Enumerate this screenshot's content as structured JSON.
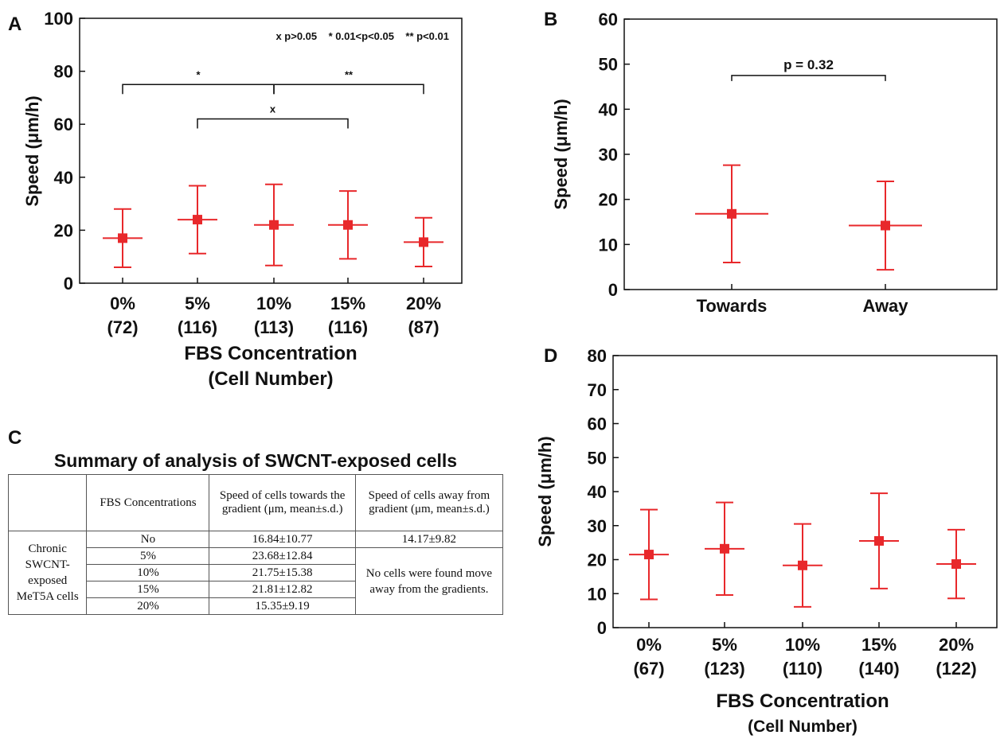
{
  "colors": {
    "marker": "#e8282b",
    "axis": "#111111",
    "sig": "#111111"
  },
  "panels": {
    "A": {
      "letter": "A",
      "legend": "x p>0.05    * 0.01<p<0.05    ** p<0.01",
      "xtitle_line1": "FBS Concentration",
      "xtitle_line2": "(Cell Number)"
    },
    "B": {
      "letter": "B",
      "pvalue": "p = 0.32"
    },
    "C": {
      "letter": "C",
      "title": "Summary of analysis of SWCNT-exposed cells"
    },
    "D": {
      "letter": "D",
      "xtitle_line1": "FBS Concentration",
      "xtitle_line2": "(Cell Number)"
    }
  },
  "chart_data": [
    {
      "panel": "A",
      "type": "scatter",
      "ylabel": "Speed (μm/h)",
      "ylim": [
        0,
        100
      ],
      "yticks": [
        0,
        20,
        40,
        60,
        80,
        100
      ],
      "categories": [
        "0%",
        "5%",
        "10%",
        "15%",
        "20%"
      ],
      "category_counts": [
        "(72)",
        "(116)",
        "(113)",
        "(116)",
        "(87)"
      ],
      "values": [
        17,
        24,
        22,
        22,
        15.5
      ],
      "errors": [
        11,
        12.8,
        15.3,
        12.8,
        9.2
      ],
      "significance": [
        {
          "from": 0,
          "to": 2,
          "label": "*",
          "y": 75
        },
        {
          "from": 2,
          "to": 4,
          "label": "**",
          "y": 75
        },
        {
          "from": 1,
          "to": 3,
          "label": "x",
          "y": 62
        }
      ]
    },
    {
      "panel": "B",
      "type": "scatter",
      "ylabel": "Speed (μm/h)",
      "ylim": [
        0,
        60
      ],
      "yticks": [
        0,
        10,
        20,
        30,
        40,
        50,
        60
      ],
      "categories": [
        "Towards",
        "Away"
      ],
      "values": [
        16.8,
        14.2
      ],
      "errors": [
        10.8,
        9.8
      ],
      "significance": [
        {
          "from": 0,
          "to": 1,
          "label": "p = 0.32",
          "y": 47.5
        }
      ]
    },
    {
      "panel": "D",
      "type": "scatter",
      "ylabel": "Speed (μm/h)",
      "ylim": [
        0,
        80
      ],
      "yticks": [
        0,
        10,
        20,
        30,
        40,
        50,
        60,
        70,
        80
      ],
      "categories": [
        "0%",
        "5%",
        "10%",
        "15%",
        "20%"
      ],
      "category_counts": [
        "(67)",
        "(123)",
        "(110)",
        "(140)",
        "(122)"
      ],
      "values": [
        21.5,
        23.2,
        18.3,
        25.5,
        18.7
      ],
      "errors": [
        13.2,
        13.6,
        12.2,
        14,
        10.1
      ]
    },
    {
      "panel": "C",
      "type": "table",
      "headers": [
        "",
        "FBS Concentrations",
        "Speed of cells towards the gradient (μm, mean±s.d.)",
        "Speed of cells away from gradient (μm, mean±s.d.)"
      ],
      "row_group_label": "Chronic SWCNT-exposed MeT5A cells",
      "rows": [
        {
          "fbs": "No",
          "towards": "16.84±10.77",
          "away": "14.17±9.82"
        },
        {
          "fbs": "5%",
          "towards": "23.68±12.84"
        },
        {
          "fbs": "10%",
          "towards": "21.75±15.38"
        },
        {
          "fbs": "15%",
          "towards": "21.81±12.82"
        },
        {
          "fbs": "20%",
          "towards": "15.35±9.19"
        }
      ],
      "away_merged_note": "No cells were found move away from the gradients."
    }
  ]
}
